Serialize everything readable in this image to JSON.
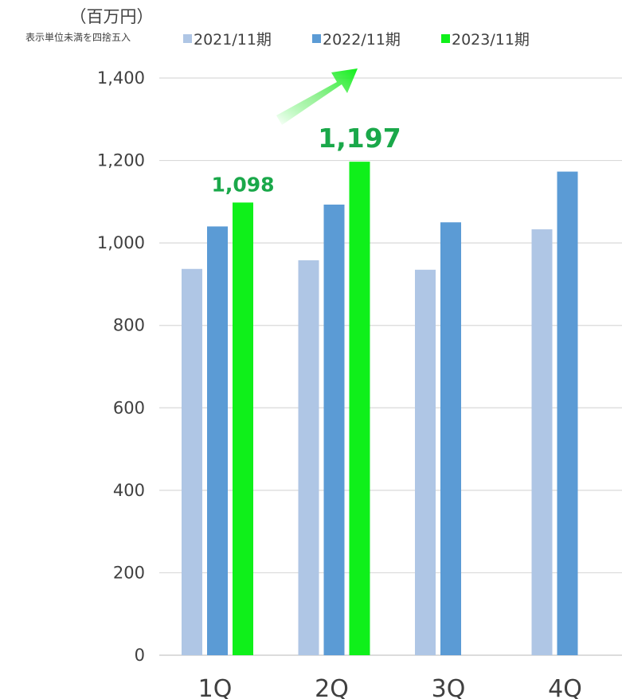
{
  "chart_data": {
    "type": "bar",
    "title": "",
    "unit": "（百万円）",
    "unit_note": "表示単位未満を四捨五入",
    "categories": [
      "1Q",
      "2Q",
      "3Q",
      "4Q"
    ],
    "series": [
      {
        "name": "2021/11期",
        "color": "#afc6e5",
        "values": [
          937,
          958,
          935,
          1033
        ]
      },
      {
        "name": "2022/11期",
        "color": "#5b9bd5",
        "values": [
          1040,
          1093,
          1050,
          1173
        ]
      },
      {
        "name": "2023/11期",
        "color": "#0ff01a",
        "values": [
          1098,
          1197,
          null,
          null
        ]
      }
    ],
    "ylim": [
      0,
      1400
    ],
    "yticks": [
      0,
      200,
      400,
      600,
      800,
      1000,
      1200,
      1400
    ],
    "ytick_labels": [
      "0",
      "200",
      "400",
      "600",
      "800",
      "1,000",
      "1,200",
      "1,400"
    ],
    "grid": true,
    "legend_position": "top",
    "data_labels": [
      {
        "category": "1Q",
        "series": "2023/11期",
        "text": "1,098"
      },
      {
        "category": "2Q",
        "series": "2023/11期",
        "text": "1,197"
      }
    ],
    "label_color": "#1aa84a"
  }
}
